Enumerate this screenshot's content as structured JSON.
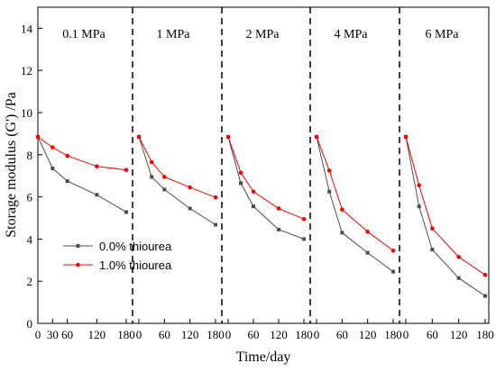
{
  "chart_data": {
    "type": "line",
    "xlabel": "Time/day",
    "ylabel": "Storage modulus (G') /Pa",
    "ylim": [
      0,
      15
    ],
    "yticks": [
      0,
      2,
      4,
      6,
      8,
      10,
      12,
      14
    ],
    "xticks_labels": [
      "0",
      "60",
      "120",
      "180"
    ],
    "first_xtick_labels": [
      "0",
      "30",
      "60",
      "120",
      "180"
    ],
    "xlim": [
      0,
      180
    ],
    "legend_placement": "lower-left",
    "legend": [
      {
        "name": "0.0% thiourea",
        "color": "#4d4d4d",
        "marker": "square"
      },
      {
        "name": "1.0% thiourea",
        "color": "#ff0000",
        "marker": "circle"
      }
    ],
    "panels": [
      {
        "label": "0.1 MPa",
        "x": [
          0,
          30,
          60,
          120,
          180
        ],
        "series": [
          {
            "name": "0.0% thiourea",
            "values": [
              8.85,
              7.35,
              6.75,
              6.1,
              5.28
            ]
          },
          {
            "name": "1.0% thiourea",
            "values": [
              8.85,
              8.35,
              7.95,
              7.45,
              7.28
            ]
          }
        ]
      },
      {
        "label": "1 MPa",
        "x": [
          0,
          30,
          60,
          120,
          180
        ],
        "series": [
          {
            "name": "0.0% thiourea",
            "values": [
              8.85,
              6.95,
              6.35,
              5.45,
              4.68
            ]
          },
          {
            "name": "1.0% thiourea",
            "values": [
              8.85,
              7.65,
              6.95,
              6.45,
              5.98
            ]
          }
        ]
      },
      {
        "label": "2 MPa",
        "x": [
          0,
          30,
          60,
          120,
          180
        ],
        "series": [
          {
            "name": "0.0% thiourea",
            "values": [
              8.85,
              6.65,
              5.55,
              4.45,
              4.0
            ]
          },
          {
            "name": "1.0% thiourea",
            "values": [
              8.85,
              7.15,
              6.25,
              5.45,
              4.95
            ]
          }
        ]
      },
      {
        "label": "4 MPa",
        "x": [
          0,
          30,
          60,
          120,
          180
        ],
        "series": [
          {
            "name": "0.0% thiourea",
            "values": [
              8.85,
              6.25,
              4.3,
              3.35,
              2.45
            ]
          },
          {
            "name": "1.0% thiourea",
            "values": [
              8.85,
              7.25,
              5.4,
              4.35,
              3.45
            ]
          }
        ]
      },
      {
        "label": "6 MPa",
        "x": [
          0,
          30,
          60,
          120,
          180
        ],
        "series": [
          {
            "name": "0.0% thiourea",
            "values": [
              8.85,
              5.55,
              3.5,
              2.15,
              1.3
            ]
          },
          {
            "name": "1.0% thiourea",
            "values": [
              8.85,
              6.55,
              4.5,
              3.15,
              2.3
            ]
          }
        ]
      }
    ]
  }
}
